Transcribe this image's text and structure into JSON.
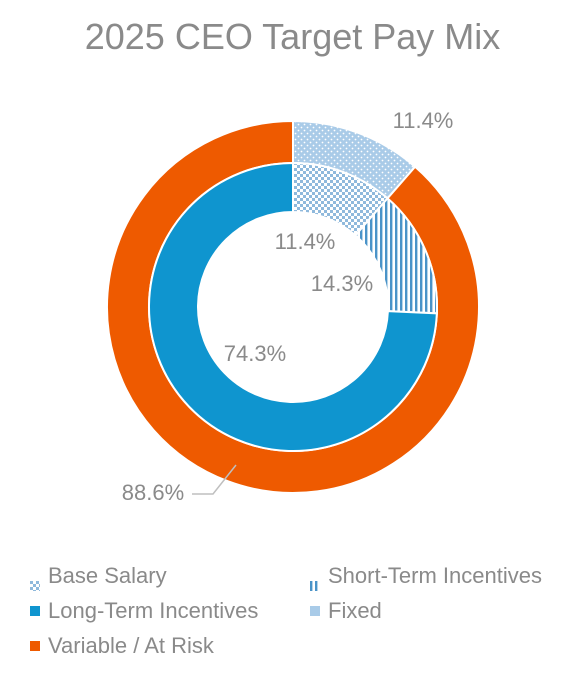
{
  "chart_data": {
    "type": "pie",
    "title": "2025 CEO Target Pay Mix",
    "inner_ring": {
      "categories": [
        "Base Salary",
        "Short-Term Incentives",
        "Long-Term Incentives"
      ],
      "values": [
        11.4,
        14.3,
        74.3
      ],
      "labels": [
        "11.4%",
        "14.3%",
        "74.3%"
      ]
    },
    "outer_ring": {
      "categories": [
        "Fixed",
        "Variable / At Risk"
      ],
      "values": [
        11.4,
        88.6
      ],
      "labels": [
        "11.4%",
        "88.6%"
      ]
    },
    "legend": {
      "placement": "bottom",
      "items": [
        {
          "name": "Base Salary",
          "pattern": "checker"
        },
        {
          "name": "Short-Term Incentives",
          "pattern": "vertical-stripes"
        },
        {
          "name": "Long-Term Incentives",
          "pattern": "solid"
        },
        {
          "name": "Fixed",
          "pattern": "dots"
        },
        {
          "name": "Variable / At Risk",
          "pattern": "solid"
        }
      ]
    },
    "colors": {
      "base_salary": "#8fb9dc",
      "short_term": "#4a93c8",
      "long_term": "#0f95cf",
      "fixed": "#a9cbe8",
      "variable": "#ee5a00",
      "text": "#8a8a8a"
    }
  }
}
